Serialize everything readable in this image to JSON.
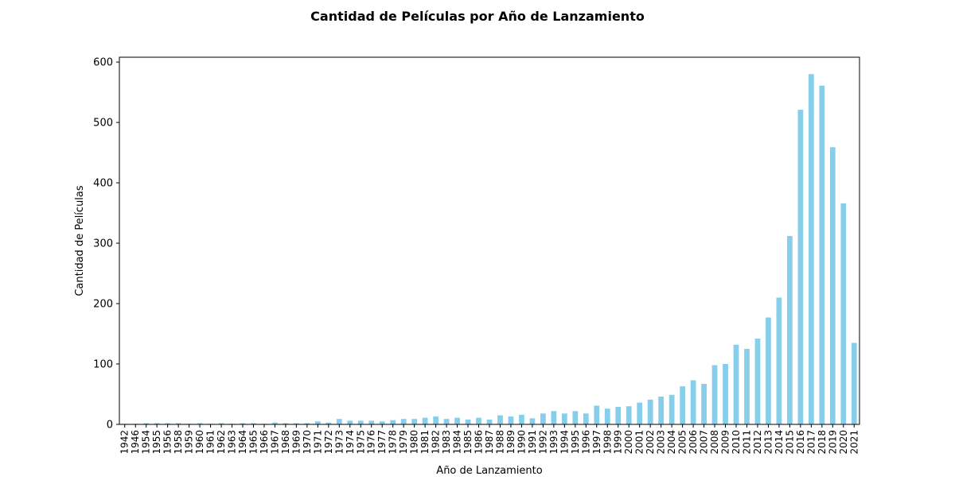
{
  "chart_data": {
    "type": "bar",
    "title": "Cantidad de Películas por Año de Lanzamiento",
    "xlabel": "Año de Lanzamiento",
    "ylabel": "Cantidad de Películas",
    "ylim": [
      0,
      608
    ],
    "yticks": [
      0,
      100,
      200,
      300,
      400,
      500,
      600
    ],
    "grid": false,
    "bar_color": "#87ceeb",
    "categories": [
      "1942",
      "1946",
      "1954",
      "1955",
      "1956",
      "1958",
      "1959",
      "1960",
      "1961",
      "1962",
      "1963",
      "1964",
      "1965",
      "1966",
      "1967",
      "1968",
      "1969",
      "1970",
      "1971",
      "1972",
      "1973",
      "1974",
      "1975",
      "1976",
      "1977",
      "1978",
      "1979",
      "1980",
      "1981",
      "1982",
      "1983",
      "1984",
      "1985",
      "1986",
      "1987",
      "1988",
      "1989",
      "1990",
      "1991",
      "1992",
      "1993",
      "1994",
      "1995",
      "1996",
      "1997",
      "1998",
      "1999",
      "2000",
      "2001",
      "2002",
      "2003",
      "2004",
      "2005",
      "2006",
      "2007",
      "2008",
      "2009",
      "2010",
      "2011",
      "2012",
      "2013",
      "2014",
      "2015",
      "2016",
      "2017",
      "2018",
      "2019",
      "2020",
      "2021"
    ],
    "values": [
      1,
      1,
      2,
      2,
      2,
      2,
      1,
      2,
      1,
      2,
      1,
      2,
      2,
      1,
      3,
      2,
      2,
      2,
      5,
      3,
      9,
      6,
      6,
      6,
      5,
      7,
      9,
      9,
      11,
      13,
      9,
      11,
      8,
      11,
      8,
      15,
      13,
      16,
      10,
      18,
      22,
      18,
      22,
      18,
      31,
      26,
      29,
      30,
      36,
      41,
      46,
      49,
      63,
      73,
      67,
      98,
      100,
      132,
      125,
      142,
      177,
      210,
      312,
      521,
      580,
      561,
      459,
      366,
      135
    ]
  }
}
